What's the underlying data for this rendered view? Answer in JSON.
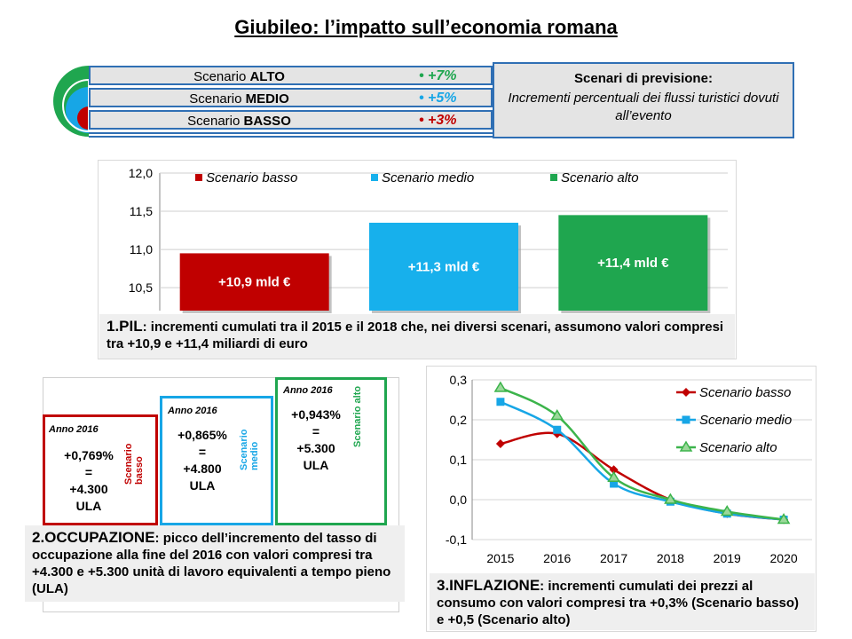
{
  "title": "Giubileo: l’impatto sull’economia romana",
  "scenarios": [
    {
      "prefix": "Scenario ",
      "name": "ALTO",
      "value": "+7%",
      "color": "#1fa64f"
    },
    {
      "prefix": "Scenario ",
      "name": "MEDIO",
      "value": "+5%",
      "color": "#17a6e6"
    },
    {
      "prefix": "Scenario ",
      "name": "BASSO",
      "value": "+3%",
      "color": "#c00000"
    }
  ],
  "scenario_note": {
    "heading": "Scenari di previsione:",
    "text": "Incrementi percentuali dei flussi turistici dovuti all’evento"
  },
  "pil": {
    "caption_num": "1.PIL",
    "caption_text": ": incrementi cumulati tra il 2015 e il 2018 che, nei diversi scenari, assumono valori compresi tra +10,9 e +11,4 miliardi di euro"
  },
  "occupazione": {
    "caption_num": "2.OCCUPAZIONE",
    "caption_text": ": picco dell’incremento del tasso di occupazione alla fine del 2016 con valori compresi tra +4.300 e +5.300 unità di lavoro equivalenti a tempo pieno (ULA)",
    "boxes": [
      {
        "year": "Anno 2016",
        "pct": "+0,769%",
        "eq": "=",
        "ula": "+4.300",
        "unit": "ULA",
        "side": "Scenario basso",
        "color": "#c00000"
      },
      {
        "year": "Anno 2016",
        "pct": "+0,865%",
        "eq": "=",
        "ula": "+4.800",
        "unit": "ULA",
        "side": "Scenario medio",
        "color": "#17a6e6"
      },
      {
        "year": "Anno 2016",
        "pct": "+0,943%",
        "eq": "=",
        "ula": "+5.300",
        "unit": "ULA",
        "side": "Scenario alto",
        "color": "#1fa64f"
      }
    ]
  },
  "inflazione": {
    "caption_num": "3.INFLAZIONE",
    "caption_text": ": incrementi cumulati dei prezzi al consumo con valori compresi tra +0,3% (Scenario basso) e +0,5 (Scenario alto)"
  },
  "chart_data": [
    {
      "type": "bar",
      "categories": [
        "Scenario basso",
        "Scenario medio",
        "Scenario alto"
      ],
      "values": [
        10.95,
        11.35,
        11.45
      ],
      "data_labels": [
        "+10,9 mld €",
        "+11,3 mld €",
        "+11,4 mld €"
      ],
      "colors": [
        "#c00000",
        "#17b0ec",
        "#1fa64f"
      ],
      "ylim": [
        10.2,
        12.0
      ],
      "yticks": [
        "12,0",
        "11,5",
        "11,0",
        "10,5"
      ],
      "ytick_values": [
        12.0,
        11.5,
        11.0,
        10.5
      ],
      "legend": [
        "Scenario basso",
        "Scenario medio",
        "Scenario alto"
      ],
      "legend_position": "top",
      "grid": true
    },
    {
      "type": "line",
      "x": [
        "2015",
        "2016",
        "2017",
        "2018",
        "2019",
        "2020"
      ],
      "series": [
        {
          "name": "Scenario basso",
          "values": [
            0.14,
            0.165,
            0.075,
            0.0,
            -0.035,
            -0.05
          ],
          "color": "#c00000",
          "marker": "diamond"
        },
        {
          "name": "Scenario medio",
          "values": [
            0.245,
            0.175,
            0.04,
            -0.005,
            -0.035,
            -0.05
          ],
          "color": "#17a6e6",
          "marker": "square"
        },
        {
          "name": "Scenario alto",
          "values": [
            0.28,
            0.21,
            0.055,
            0.0,
            -0.03,
            -0.05
          ],
          "color": "#3cb44b",
          "marker": "triangle"
        }
      ],
      "ylim": [
        -0.1,
        0.3
      ],
      "yticks": [
        "0,3",
        "0,2",
        "0,1",
        "0,0",
        "-0,1"
      ],
      "ytick_values": [
        0.3,
        0.2,
        0.1,
        0.0,
        -0.1
      ],
      "legend_position": "right",
      "grid": true
    }
  ]
}
